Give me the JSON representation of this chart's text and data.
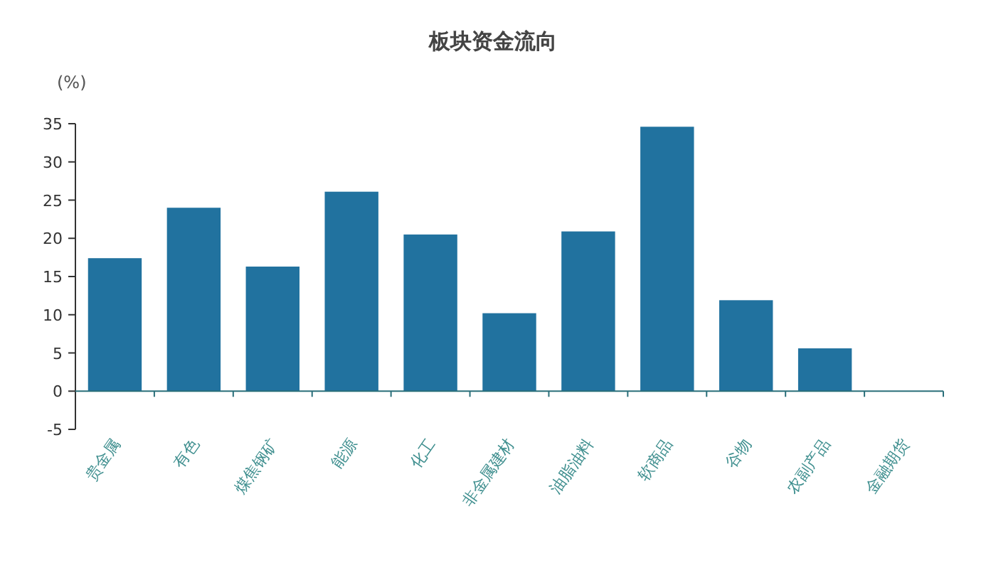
{
  "chart_data": {
    "type": "bar",
    "title": "板块资金流向",
    "ylabel": "(%)",
    "categories": [
      "贵金属",
      "有色",
      "煤焦钢矿",
      "能源",
      "化工",
      "非金属建材",
      "油脂油料",
      "软商品",
      "谷物",
      "农副产品",
      "金融期货"
    ],
    "values": [
      17.4,
      24.0,
      16.3,
      26.1,
      20.5,
      10.2,
      20.9,
      34.6,
      11.9,
      5.6,
      0
    ],
    "color": "#21729f",
    "ylim": [
      -5,
      35
    ],
    "yticks": [
      -5,
      0,
      5,
      10,
      15,
      20,
      25,
      30,
      35
    ],
    "grid": false,
    "ref_lines": [
      {
        "axis": "y",
        "value": 0,
        "color": "#2a6f7a"
      }
    ]
  }
}
